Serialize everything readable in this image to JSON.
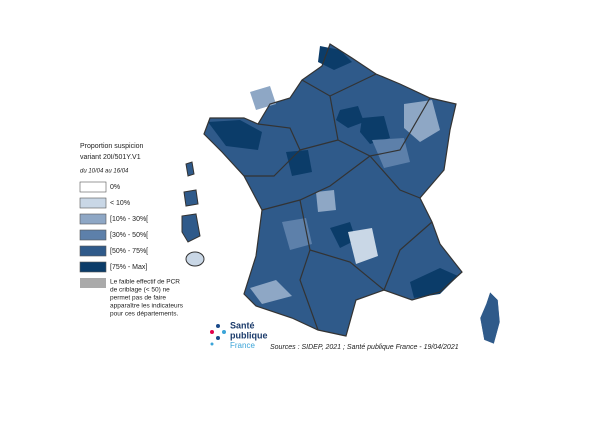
{
  "legend": {
    "title_lines": [
      "Proportion suspicion",
      "variant 20I/501Y.V1"
    ],
    "period": "du 10/04 au 16/04",
    "items": [
      {
        "label": "0%",
        "color": "#ffffff"
      },
      {
        "label": "< 10%",
        "color": "#c9d7e6"
      },
      {
        "label": "[10% - 30%[",
        "color": "#8ea7c5"
      },
      {
        "label": "[30% - 50%[",
        "color": "#5d80aa"
      },
      {
        "label": "[50% - 75%[",
        "color": "#2f5a8a"
      },
      {
        "label": "[75% - Max]",
        "color": "#0b3c69"
      }
    ],
    "note": {
      "color": "#aaaaaa",
      "lines": [
        "Le faible effectif de PCR",
        "de criblage (< 50) ne",
        "permet pas de faire",
        "apparaître les indicateurs",
        "pour ces départements."
      ]
    }
  },
  "logo": {
    "lines": [
      "Santé",
      "publique",
      "France"
    ]
  },
  "source": "Sources : SIDEP, 2021 ; Santé publique France - 19/04/2021"
}
